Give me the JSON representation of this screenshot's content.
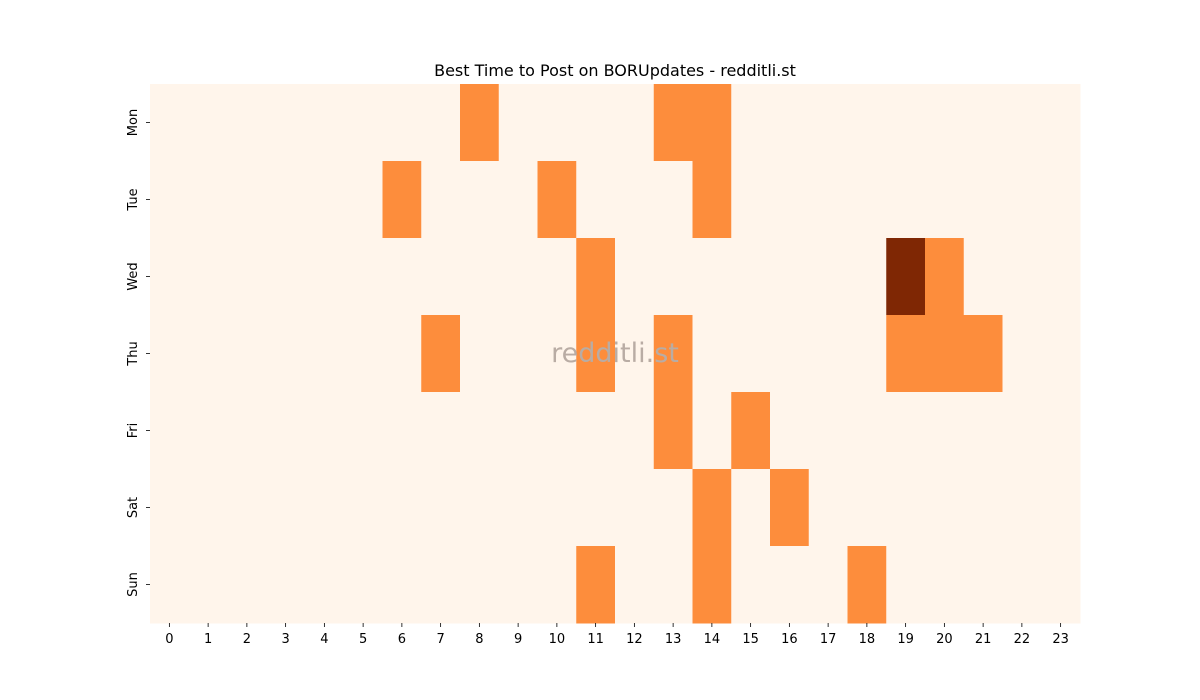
{
  "chart_data": {
    "type": "heatmap",
    "title": "Best Time to Post on BORUpdates - redditli.st",
    "watermark": "redditli.st",
    "x": [
      "0",
      "1",
      "2",
      "3",
      "4",
      "5",
      "6",
      "7",
      "8",
      "9",
      "10",
      "11",
      "12",
      "13",
      "14",
      "15",
      "16",
      "17",
      "18",
      "19",
      "20",
      "21",
      "22",
      "23"
    ],
    "y": [
      "Mon",
      "Tue",
      "Wed",
      "Thu",
      "Fri",
      "Sat",
      "Sun"
    ],
    "values": [
      [
        0,
        0,
        0,
        0,
        0,
        0,
        0,
        0,
        1,
        0,
        0,
        0,
        0,
        1,
        1,
        0,
        0,
        0,
        0,
        0,
        0,
        0,
        0,
        0
      ],
      [
        0,
        0,
        0,
        0,
        0,
        0,
        1,
        0,
        0,
        0,
        1,
        0,
        0,
        0,
        1,
        0,
        0,
        0,
        0,
        0,
        0,
        0,
        0,
        0
      ],
      [
        0,
        0,
        0,
        0,
        0,
        0,
        0,
        0,
        0,
        0,
        0,
        1,
        0,
        0,
        0,
        0,
        0,
        0,
        0,
        2,
        1,
        0,
        0,
        0
      ],
      [
        0,
        0,
        0,
        0,
        0,
        0,
        0,
        1,
        0,
        0,
        0,
        1,
        0,
        1,
        0,
        0,
        0,
        0,
        0,
        1,
        1,
        1,
        0,
        0
      ],
      [
        0,
        0,
        0,
        0,
        0,
        0,
        0,
        0,
        0,
        0,
        0,
        0,
        0,
        1,
        0,
        1,
        0,
        0,
        0,
        0,
        0,
        0,
        0,
        0
      ],
      [
        0,
        0,
        0,
        0,
        0,
        0,
        0,
        0,
        0,
        0,
        0,
        0,
        0,
        0,
        1,
        0,
        1,
        0,
        0,
        0,
        0,
        0,
        0,
        0
      ],
      [
        0,
        0,
        0,
        0,
        0,
        0,
        0,
        0,
        0,
        0,
        0,
        1,
        0,
        0,
        1,
        0,
        0,
        0,
        1,
        0,
        0,
        0,
        0,
        0
      ]
    ],
    "colormap": {
      "0": "#fff5eb",
      "1": "#fd8d3c",
      "2": "#7f2704"
    },
    "xlabel": "",
    "ylabel": ""
  }
}
